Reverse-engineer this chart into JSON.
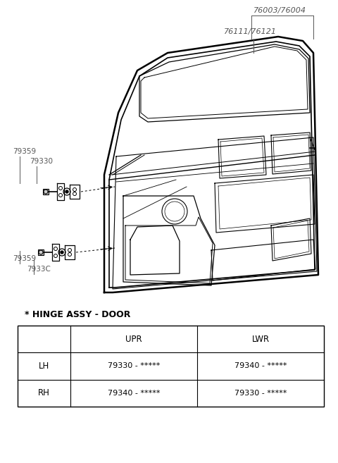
{
  "bg_color": "#ffffff",
  "labels": {
    "part1": "76003/76004",
    "part2": "76111/76121",
    "upper_left_1": "79359",
    "upper_left_2": "79330",
    "lower_left_1": "79359",
    "lower_left_2": "7933C",
    "hinge_title": "* HINGE ASSY - DOOR",
    "col_upr": "UPR",
    "col_lwr": "LWR",
    "row_lh": "LH",
    "row_rh": "RH",
    "cell_lh_upr": "79330 - *****",
    "cell_lh_lwr": "79340 - *****",
    "cell_rh_upr": "79340 - *****",
    "cell_rh_lwr": "79330 - *****"
  }
}
